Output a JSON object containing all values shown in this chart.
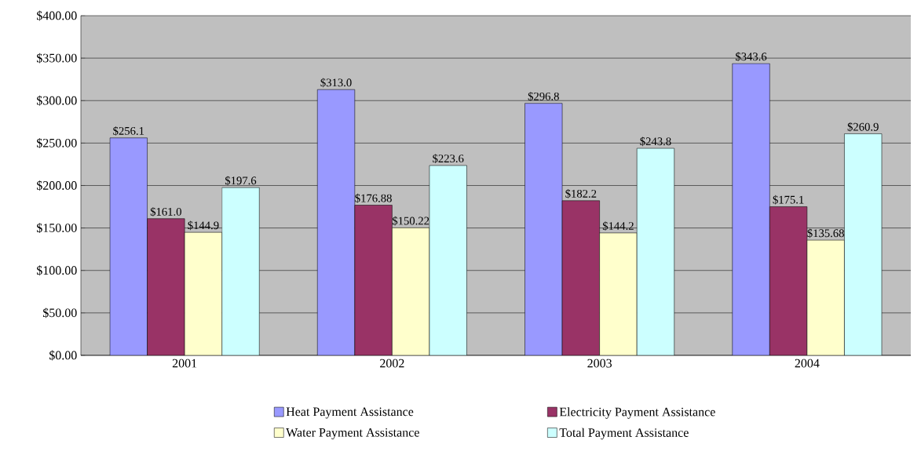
{
  "chart_data": {
    "type": "bar",
    "categories": [
      "2001",
      "2002",
      "2003",
      "2004"
    ],
    "series": [
      {
        "name": "Heat Payment Assistance",
        "color": "#9999ff",
        "values": [
          256.1,
          313.0,
          296.8,
          343.6
        ],
        "value_labels": [
          "$256.1",
          "$313.0",
          "$296.8",
          "$343.6"
        ]
      },
      {
        "name": "Electricity Payment Assistance",
        "color": "#993366",
        "values": [
          161.0,
          176.88,
          182.2,
          175.1
        ],
        "value_labels": [
          "$161.0",
          "$176.88",
          "$182.2",
          "$175.1"
        ]
      },
      {
        "name": "Water Payment Assistance",
        "color": "#ffffcc",
        "values": [
          144.9,
          150.22,
          144.2,
          135.68
        ],
        "value_labels": [
          "$144.9",
          "$150.22",
          "$144.2",
          "$135.68"
        ]
      },
      {
        "name": "Total Payment Assistance",
        "color": "#ccffff",
        "values": [
          197.6,
          223.6,
          243.8,
          260.9
        ],
        "value_labels": [
          "$197.6",
          "$223.6",
          "$243.8",
          "$260.9"
        ]
      }
    ],
    "ylim": [
      0,
      400
    ],
    "yticks": [
      {
        "value": 0,
        "label": "$0.00"
      },
      {
        "value": 50,
        "label": "$50.00"
      },
      {
        "value": 100,
        "label": "$100.00"
      },
      {
        "value": 150,
        "label": "$150.00"
      },
      {
        "value": 200,
        "label": "$200.00"
      },
      {
        "value": 250,
        "label": "$250.00"
      },
      {
        "value": 300,
        "label": "$300.00"
      },
      {
        "value": 350,
        "label": "$350.00"
      },
      {
        "value": 400,
        "label": "$400.00"
      }
    ],
    "grid": "y",
    "legend": "bottom"
  }
}
